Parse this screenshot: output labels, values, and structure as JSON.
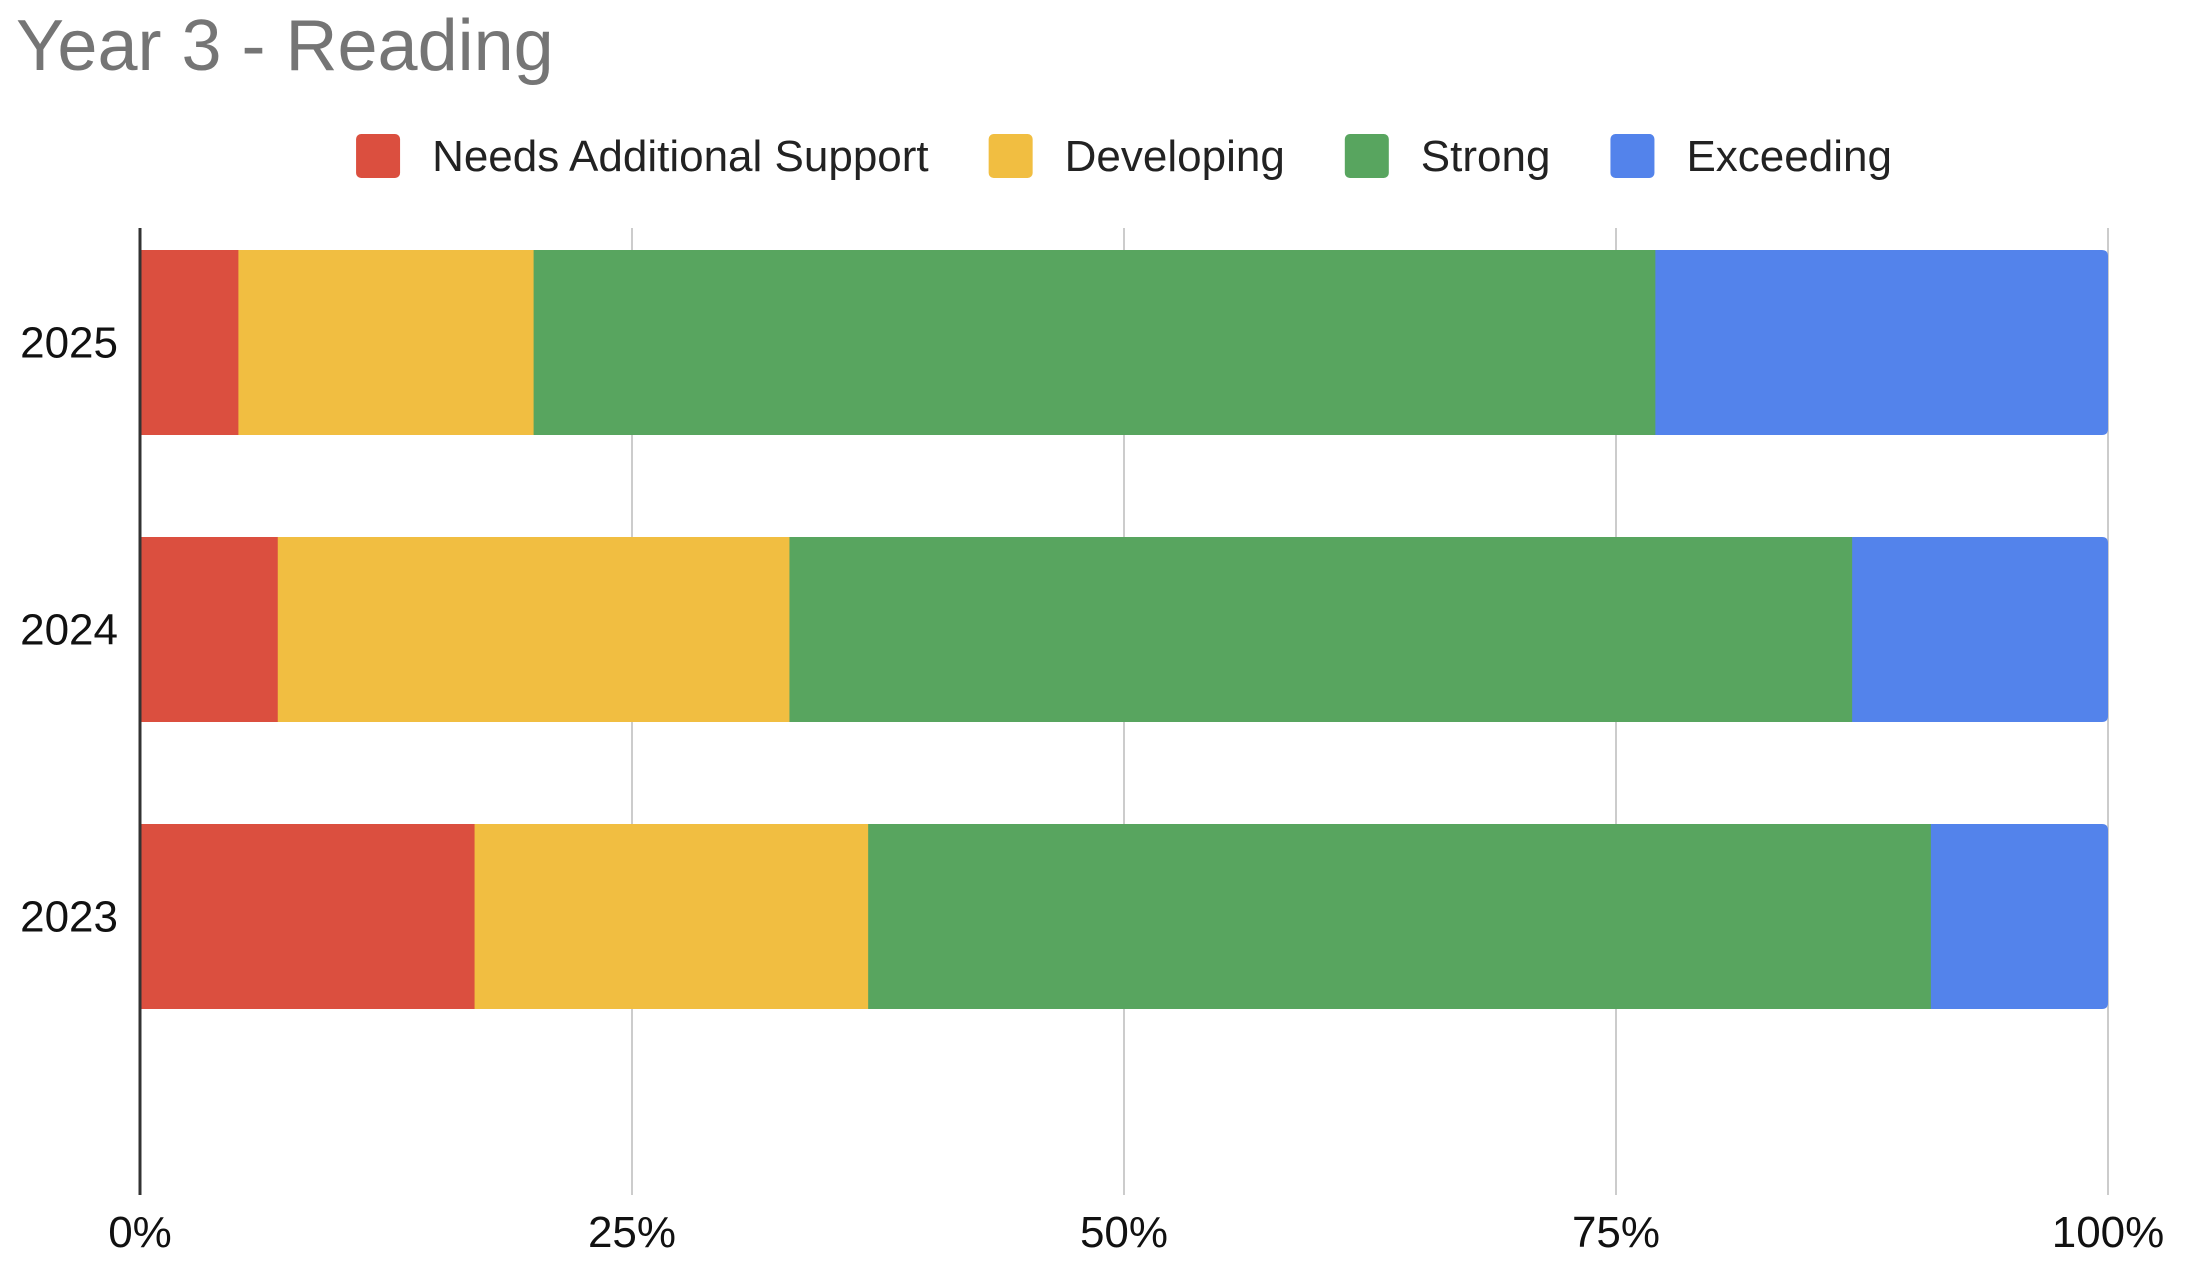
{
  "chart_data": {
    "type": "bar",
    "orientation": "horizontal",
    "stacked": "percent",
    "title": "Year 3 - Reading",
    "categories": [
      "2025",
      "2024",
      "2023"
    ],
    "series": [
      {
        "name": "Needs Additional Support",
        "color": "#db4f3f",
        "values": [
          5,
          7,
          17
        ]
      },
      {
        "name": "Developing",
        "color": "#f1be41",
        "values": [
          15,
          26,
          20
        ]
      },
      {
        "name": "Strong",
        "color": "#58a55f",
        "values": [
          57,
          54,
          54
        ]
      },
      {
        "name": "Exceeding",
        "color": "#5383eb",
        "values": [
          23,
          13,
          9
        ]
      }
    ],
    "xlim": [
      0,
      100
    ],
    "x_ticks": [
      "0%",
      "25%",
      "50%",
      "75%",
      "100%"
    ],
    "grid": true,
    "legend": "top"
  }
}
